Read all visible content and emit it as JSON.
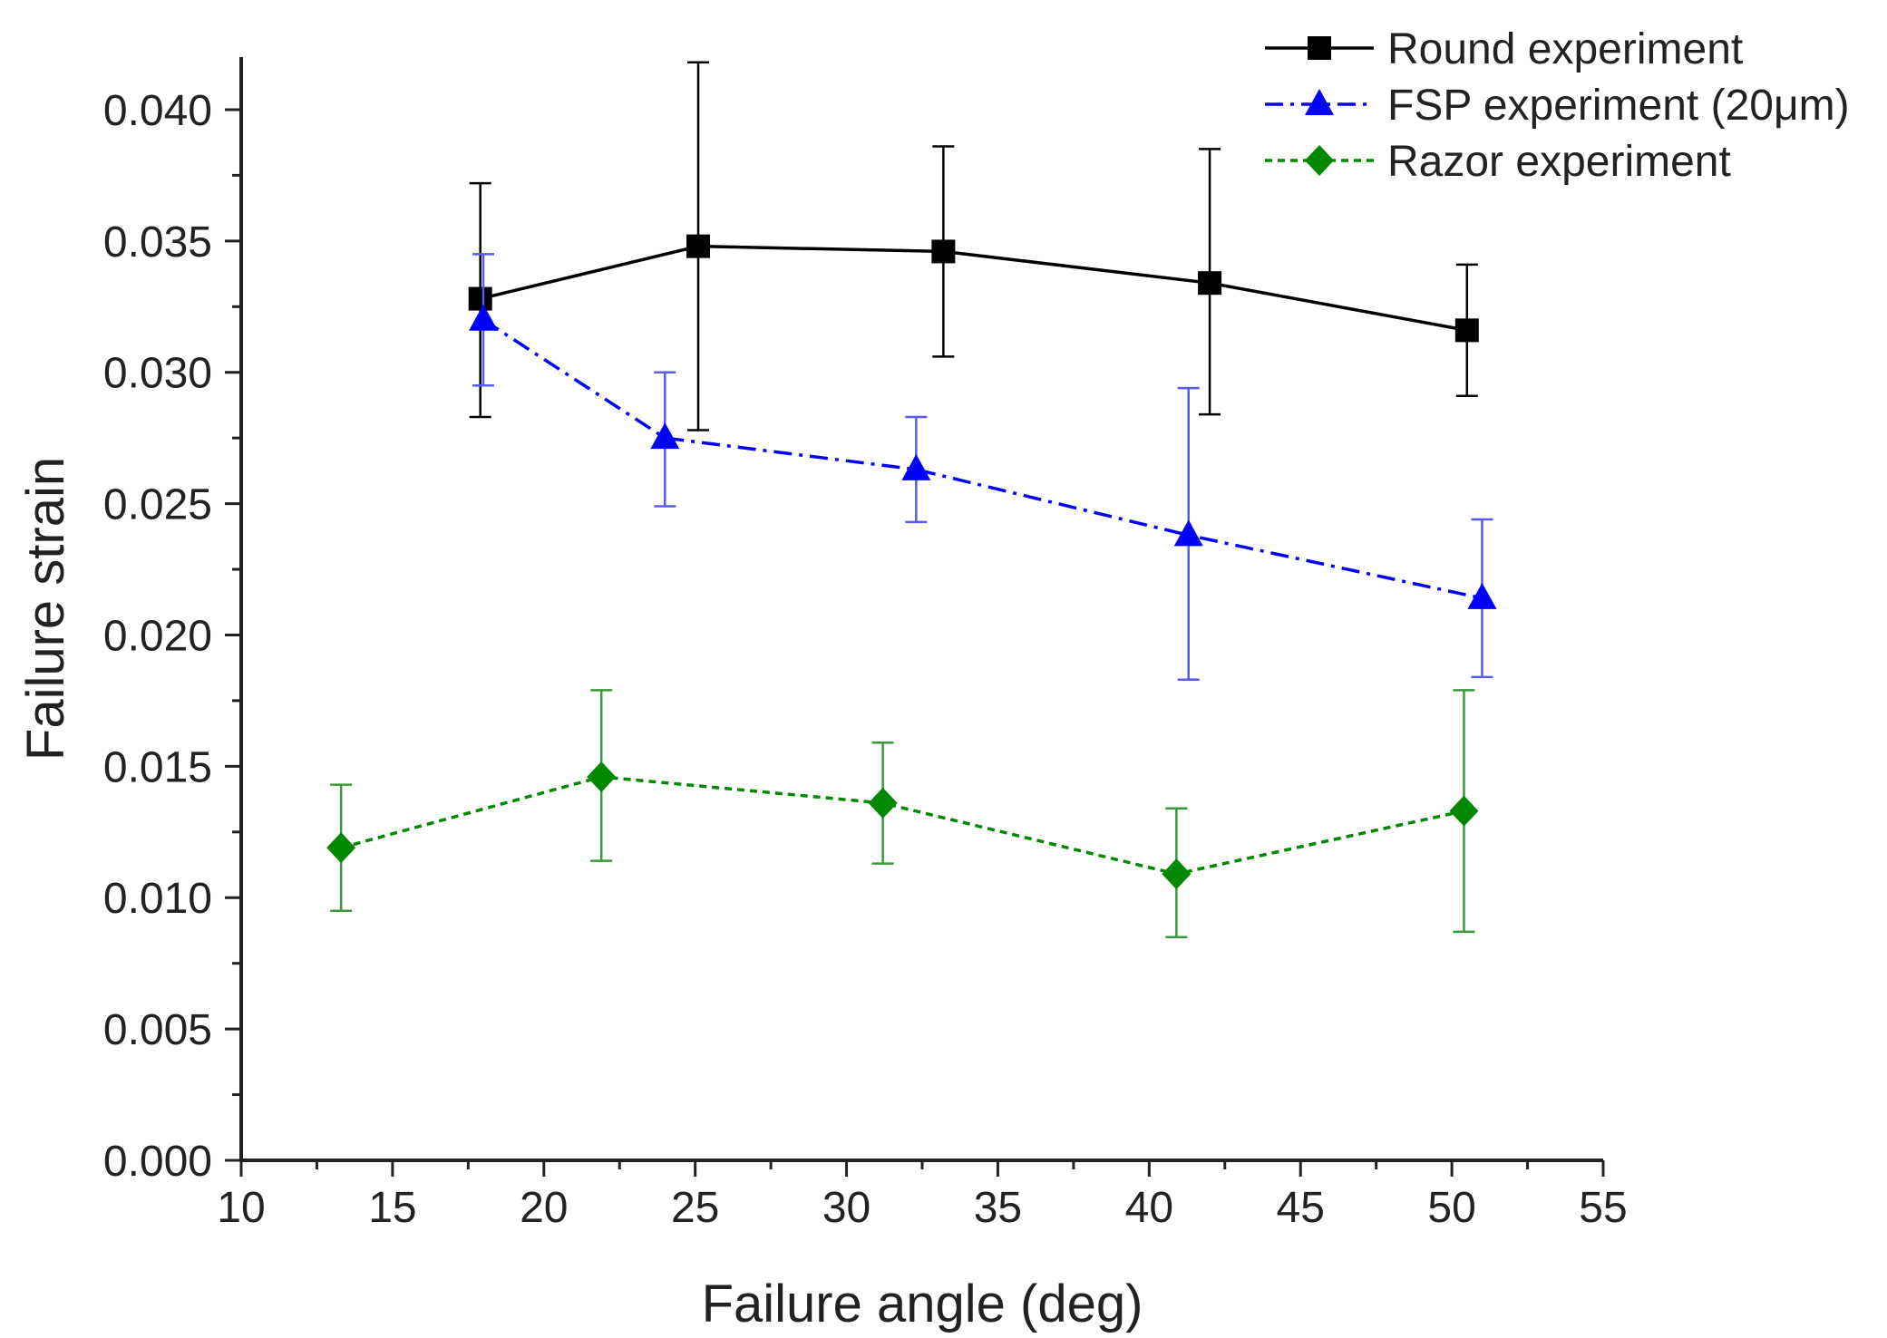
{
  "chart_data": {
    "type": "line",
    "title": "",
    "xlabel": "Failure angle (deg)",
    "ylabel": "Failure strain",
    "xlim": [
      10,
      55
    ],
    "ylim": [
      0,
      0.042
    ],
    "xticks": [
      10,
      15,
      20,
      25,
      30,
      35,
      40,
      45,
      50,
      55
    ],
    "xtick_labels": [
      "10",
      "15",
      "20",
      "25",
      "30",
      "35",
      "40",
      "45",
      "50",
      "55"
    ],
    "yticks": [
      0,
      0.005,
      0.01,
      0.015,
      0.02,
      0.025,
      0.03,
      0.035,
      0.04
    ],
    "ytick_labels": [
      "0.000",
      "0.005",
      "0.010",
      "0.015",
      "0.020",
      "0.025",
      "0.030",
      "0.035",
      "0.040"
    ],
    "grid": false,
    "legend_position": "top-right",
    "series": [
      {
        "name": "Round experiment",
        "color": "#000000",
        "error_color": "#000000",
        "marker": "square",
        "line_style": "solid",
        "points": [
          {
            "x": 17.9,
            "y": 0.0328,
            "err_low": 0.0283,
            "err_high": 0.0372
          },
          {
            "x": 25.1,
            "y": 0.0348,
            "err_low": 0.0278,
            "err_high": 0.0418
          },
          {
            "x": 33.2,
            "y": 0.0346,
            "err_low": 0.0306,
            "err_high": 0.0386
          },
          {
            "x": 42.0,
            "y": 0.0334,
            "err_low": 0.0284,
            "err_high": 0.0385
          },
          {
            "x": 50.5,
            "y": 0.0316,
            "err_low": 0.0291,
            "err_high": 0.0341
          }
        ]
      },
      {
        "name": "FSP experiment (20μm)",
        "color": "#0000ff",
        "error_color": "#5a5af0",
        "marker": "triangle",
        "line_style": "dashdot",
        "points": [
          {
            "x": 18.0,
            "y": 0.032,
            "err_low": 0.0295,
            "err_high": 0.0345
          },
          {
            "x": 24.0,
            "y": 0.0275,
            "err_low": 0.0249,
            "err_high": 0.03
          },
          {
            "x": 32.3,
            "y": 0.0263,
            "err_low": 0.0243,
            "err_high": 0.0283
          },
          {
            "x": 41.3,
            "y": 0.0238,
            "err_low": 0.0183,
            "err_high": 0.0294
          },
          {
            "x": 51.0,
            "y": 0.0214,
            "err_low": 0.0184,
            "err_high": 0.0244
          }
        ]
      },
      {
        "name": "Razor experiment",
        "color": "#008800",
        "error_color": "#3a9a3a",
        "marker": "diamond",
        "line_style": "dotted",
        "points": [
          {
            "x": 13.3,
            "y": 0.0119,
            "err_low": 0.0095,
            "err_high": 0.0143
          },
          {
            "x": 21.9,
            "y": 0.0146,
            "err_low": 0.0114,
            "err_high": 0.0179
          },
          {
            "x": 31.2,
            "y": 0.0136,
            "err_low": 0.0113,
            "err_high": 0.0159
          },
          {
            "x": 40.9,
            "y": 0.0109,
            "err_low": 0.0085,
            "err_high": 0.0134
          },
          {
            "x": 50.4,
            "y": 0.0133,
            "err_low": 0.0087,
            "err_high": 0.0179
          }
        ]
      }
    ]
  }
}
